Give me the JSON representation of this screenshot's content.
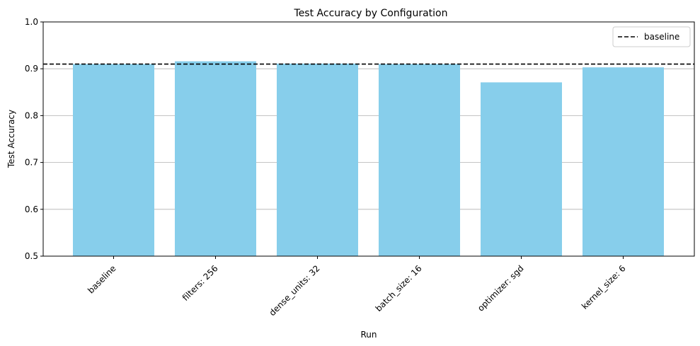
{
  "chart_data": {
    "type": "bar",
    "title": "Test Accuracy by Configuration",
    "xlabel": "Run",
    "ylabel": "Test Accuracy",
    "categories": [
      "baseline",
      "filters: 256",
      "dense_units: 32",
      "batch_size: 16",
      "optimizer: sgd",
      "kernel_size: 6"
    ],
    "values": [
      0.91,
      0.916,
      0.911,
      0.91,
      0.871,
      0.903
    ],
    "ylim": [
      0.5,
      1.0
    ],
    "yticks": [
      "0.5",
      "0.6",
      "0.7",
      "0.8",
      "0.9",
      "1.0"
    ],
    "grid": "horizontal",
    "reference_line": {
      "label": "baseline",
      "value": 0.91,
      "style": "dashed"
    },
    "legend": {
      "entries": [
        "baseline"
      ],
      "placement": "top-right"
    },
    "colors": {
      "bar": "#87ceeb",
      "reference_line": "#000000",
      "grid": "#b0b0b0"
    }
  }
}
